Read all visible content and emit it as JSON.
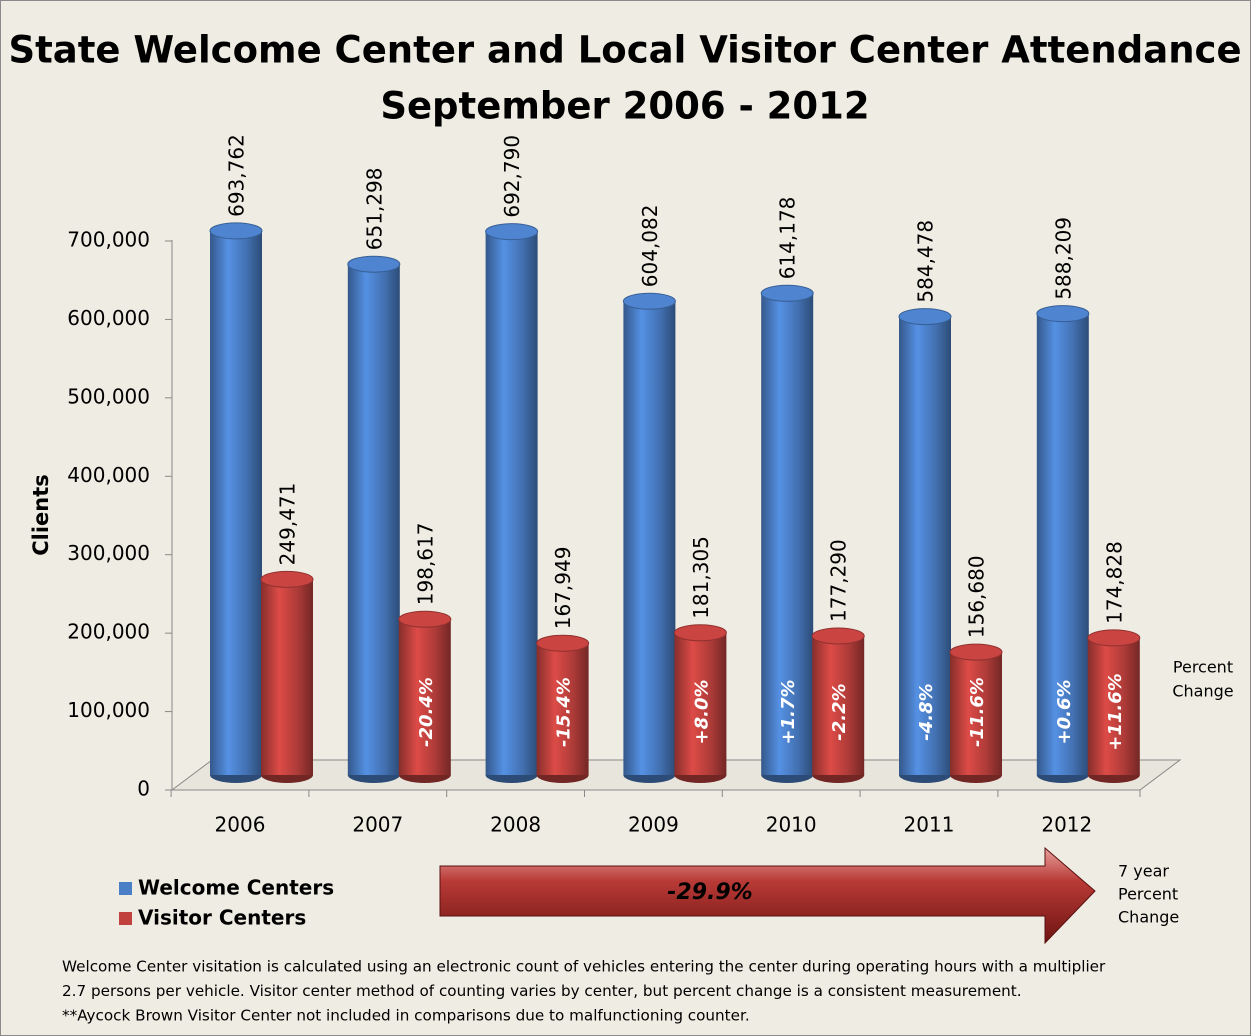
{
  "chart_data": {
    "type": "bar",
    "title": "State Welcome Center and Local Visitor Center Attendance",
    "subtitle": "September 2006 - 2012",
    "y_label": "Clients",
    "categories": [
      "2006",
      "2007",
      "2008",
      "2009",
      "2010",
      "2011",
      "2012"
    ],
    "series": [
      {
        "name": "Welcome Centers",
        "color": "#4a7ec6",
        "values": [
          693762,
          651298,
          692790,
          604082,
          614178,
          584478,
          588209
        ],
        "value_labels": [
          "693,762",
          "651,298",
          "692,790",
          "604,082",
          "614,178",
          "584,478",
          "588,209"
        ],
        "change_labels": [
          null,
          null,
          null,
          null,
          "+1.7%",
          "-4.8%",
          "+0.6%"
        ]
      },
      {
        "name": "Visitor Centers",
        "color": "#c0413e",
        "values": [
          249471,
          198617,
          167949,
          181305,
          177290,
          156680,
          174828
        ],
        "value_labels": [
          "249,471",
          "198,617",
          "167,949",
          "181,305",
          "177,290",
          "156,680",
          "174,828"
        ],
        "change_labels": [
          null,
          "-20.4%",
          "-15.4%",
          "+8.0%",
          "-2.2%",
          "-11.6%",
          "+11.6%"
        ]
      }
    ],
    "change_title": [
      "Percent",
      "Change"
    ],
    "ylim": [
      0,
      700000
    ],
    "yticks": [
      0,
      {
        "value": 100000,
        "label": "100,000"
      },
      {
        "value": 200000,
        "label": "200,000"
      },
      {
        "value": 300000,
        "label": "300,000"
      },
      {
        "value": 400000,
        "label": "400,000"
      },
      {
        "value": 500000,
        "label": "500,000"
      },
      {
        "value": 600000,
        "label": "600,000"
      },
      {
        "value": 700000,
        "label": "700,000"
      }
    ],
    "legend": "bottom-left",
    "arrow": {
      "label": "-29.9%",
      "caption": [
        "7 year",
        "Percent",
        "Change"
      ]
    },
    "footnotes": [
      "Welcome Center visitation is calculated using an electronic count of vehicles entering the center during operating hours with  a multiplier",
      "2.7 persons per vehicle.   Visitor center method of counting varies by center, but percent change is a consistent measurement.",
      "**Aycock  Brown Visitor Center not included in comparisons due to malfunctioning counter."
    ]
  }
}
